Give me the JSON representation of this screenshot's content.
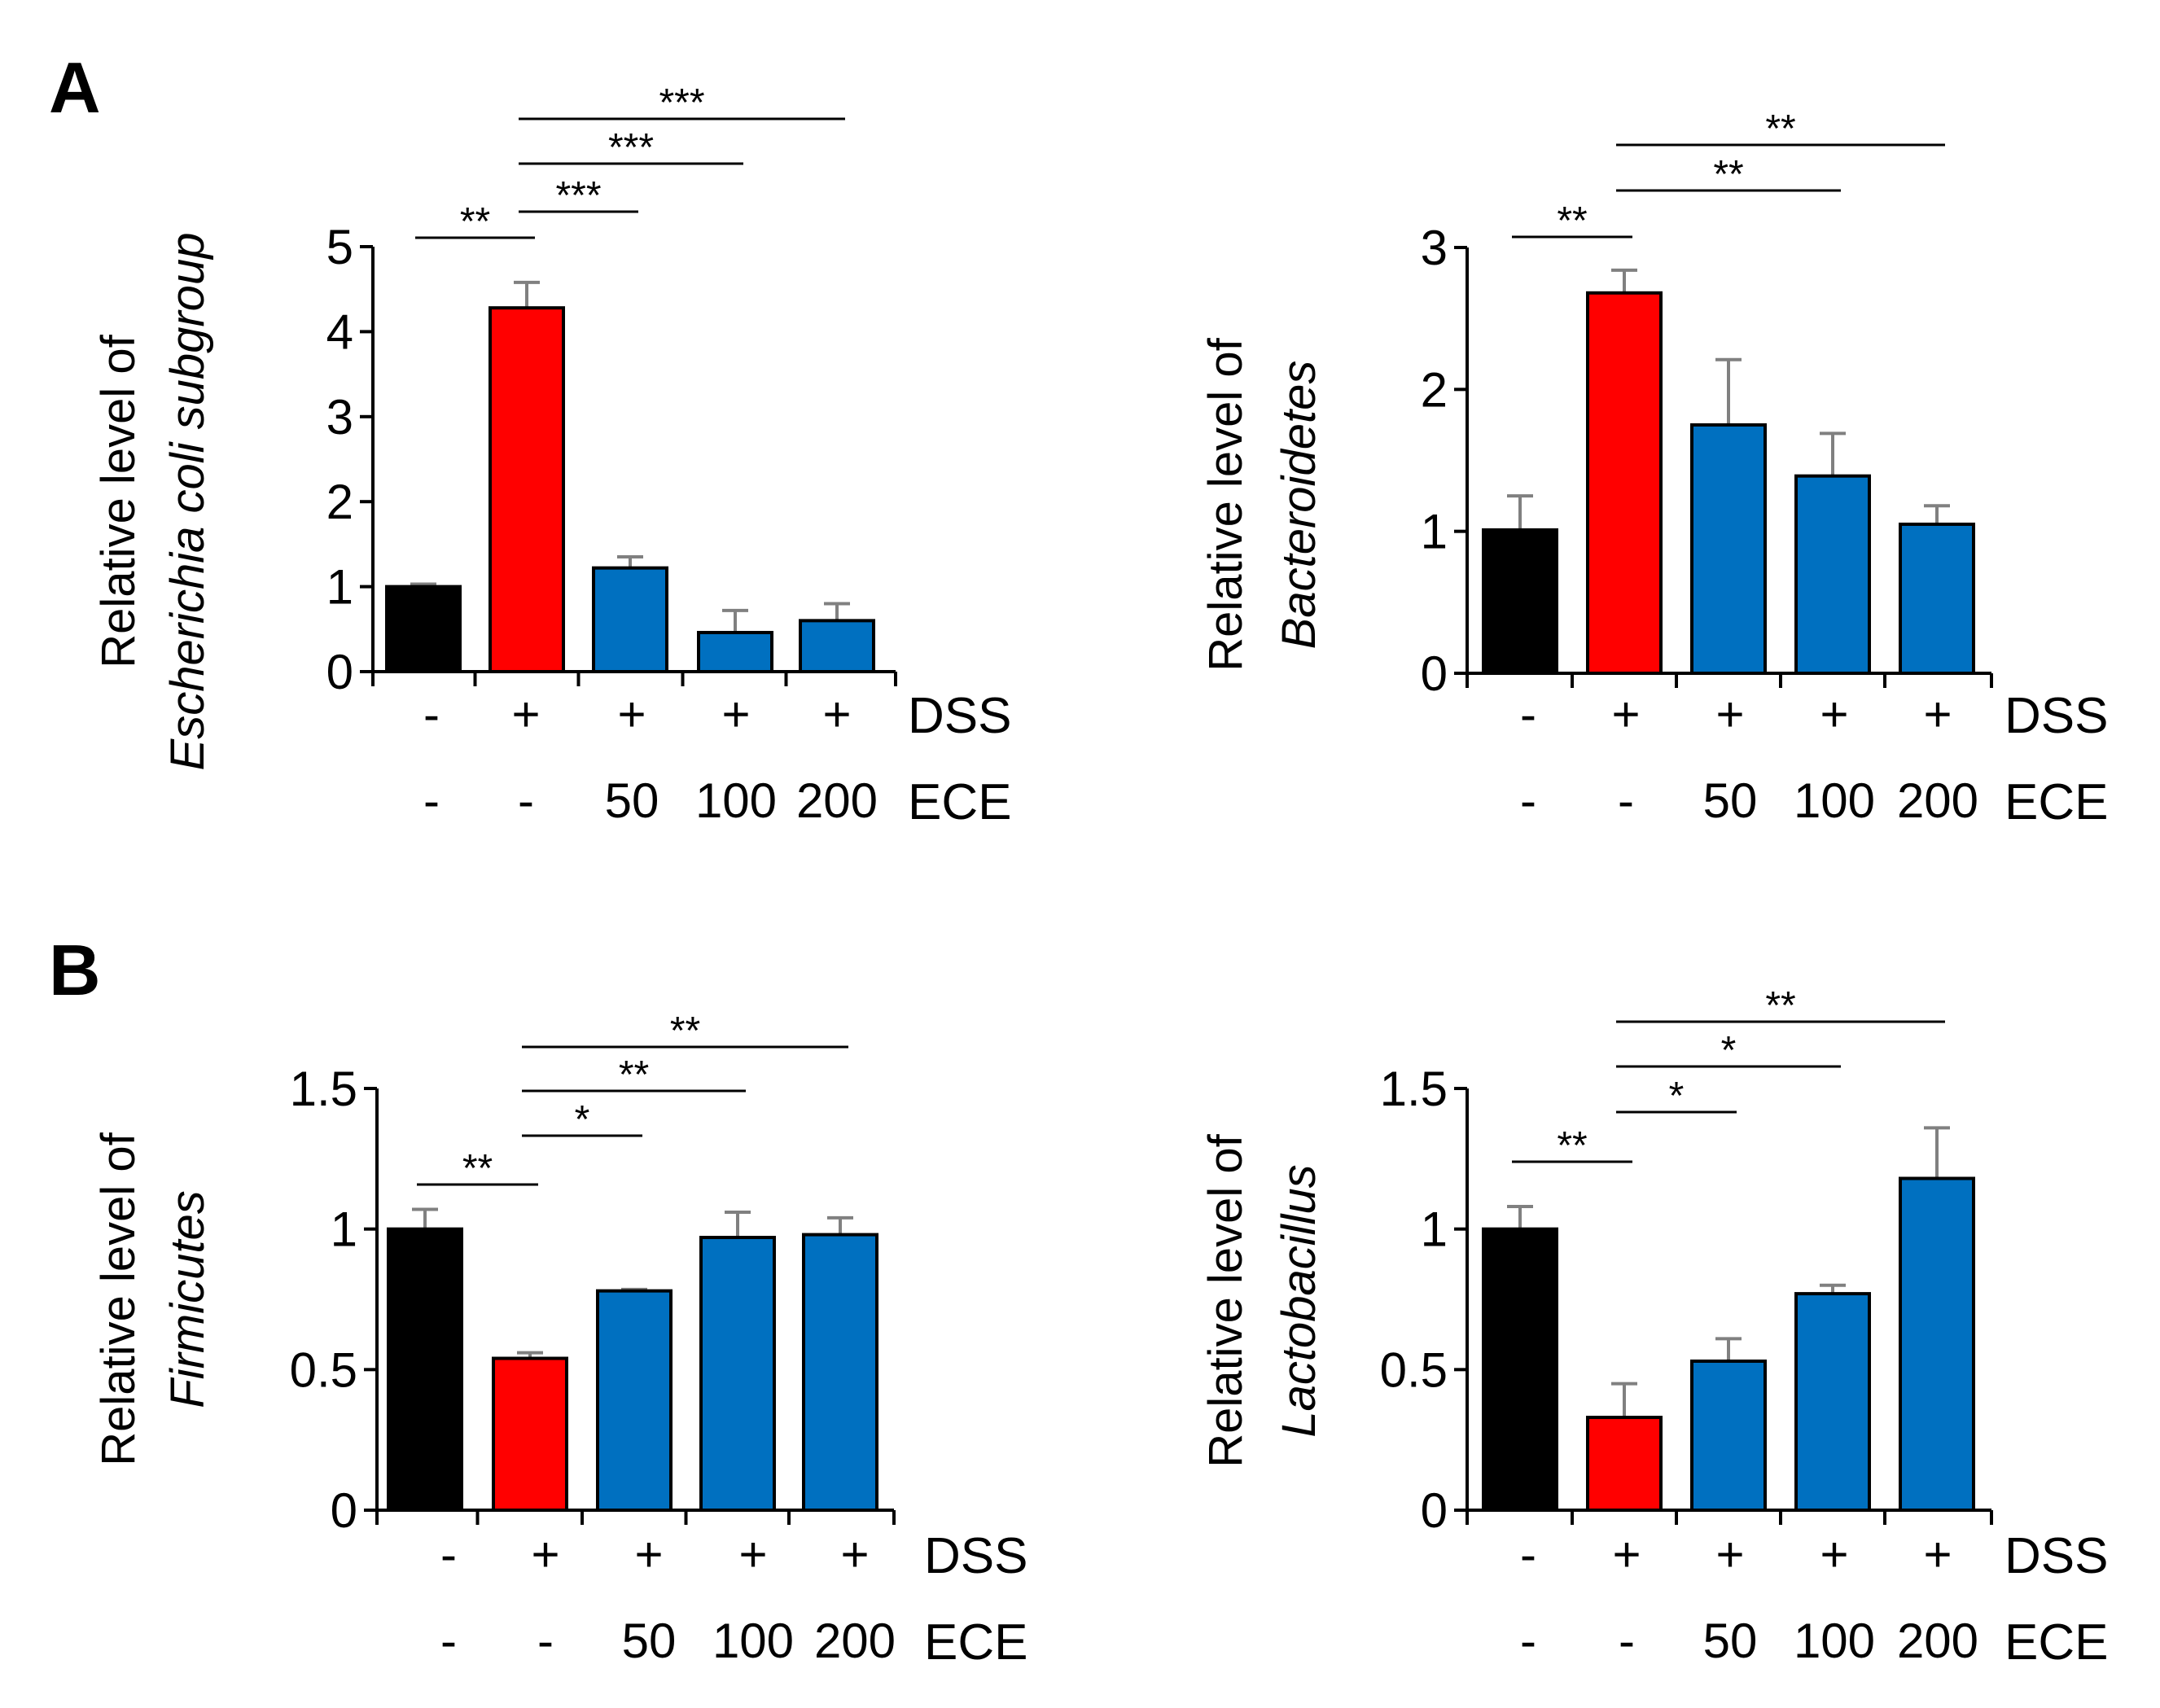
{
  "panels": [
    {
      "letter": "A"
    },
    {
      "letter": "B"
    }
  ],
  "conditions": {
    "rows": [
      "DSS",
      "ECE"
    ],
    "dss": [
      "-",
      "+",
      "+",
      "+",
      "+"
    ],
    "ece": [
      "-",
      "-",
      "50",
      "100",
      "200"
    ]
  },
  "colors": {
    "control": "#000000",
    "dss": "#ff0000",
    "ece": "#0070c0",
    "error": "#808080"
  },
  "chart_data": [
    {
      "type": "bar",
      "panel": "A",
      "ylabel_line1": "Relative level of",
      "ylabel_line2": "Escherichia coli subgroup",
      "ylim": [
        0,
        5
      ],
      "yticks": [
        "0",
        "1",
        "2",
        "3",
        "4",
        "5"
      ],
      "categories": [
        "-/-",
        "+/-",
        "+/50",
        "+/100",
        "+/200"
      ],
      "values": [
        1.0,
        4.28,
        1.22,
        0.46,
        0.6
      ],
      "errors": [
        0.03,
        0.3,
        0.13,
        0.26,
        0.2
      ],
      "significance": [
        {
          "from": 0,
          "to": 1,
          "label": "**"
        },
        {
          "from": 1,
          "to": 2,
          "label": "***"
        },
        {
          "from": 1,
          "to": 3,
          "label": "***"
        },
        {
          "from": 1,
          "to": 4,
          "label": "***"
        }
      ]
    },
    {
      "type": "bar",
      "panel": "A",
      "ylabel_line1": "Relative level of",
      "ylabel_line2": "Bacteroidetes",
      "ylim": [
        0,
        3
      ],
      "yticks": [
        "0",
        "1",
        "2",
        "3"
      ],
      "categories": [
        "-/-",
        "+/-",
        "+/50",
        "+/100",
        "+/200"
      ],
      "values": [
        1.01,
        2.68,
        1.75,
        1.39,
        1.05
      ],
      "errors": [
        0.24,
        0.16,
        0.46,
        0.3,
        0.13
      ],
      "significance": [
        {
          "from": 0,
          "to": 1,
          "label": "**"
        },
        {
          "from": 1,
          "to": 3,
          "label": "**"
        },
        {
          "from": 1,
          "to": 4,
          "label": "**"
        }
      ]
    },
    {
      "type": "bar",
      "panel": "B",
      "ylabel_line1": "Relative level of",
      "ylabel_line2": "Firmicutes",
      "ylim": [
        0,
        1.5
      ],
      "yticks": [
        "0",
        "0.5",
        "1",
        "1.5"
      ],
      "categories": [
        "-/-",
        "+/-",
        "+/50",
        "+/100",
        "+/200"
      ],
      "values": [
        1.0,
        0.54,
        0.78,
        0.97,
        0.98
      ],
      "errors": [
        0.07,
        0.02,
        0.005,
        0.09,
        0.06
      ],
      "significance": [
        {
          "from": 0,
          "to": 1,
          "label": "**"
        },
        {
          "from": 1,
          "to": 2,
          "label": "*"
        },
        {
          "from": 1,
          "to": 3,
          "label": "**"
        },
        {
          "from": 1,
          "to": 4,
          "label": "**"
        }
      ]
    },
    {
      "type": "bar",
      "panel": "B",
      "ylabel_line1": "Relative level of",
      "ylabel_line2": "Lactobacillus",
      "ylim": [
        0,
        1.5
      ],
      "yticks": [
        "0",
        "0.5",
        "1",
        "1.5"
      ],
      "categories": [
        "-/-",
        "+/-",
        "+/50",
        "+/100",
        "+/200"
      ],
      "values": [
        1.0,
        0.33,
        0.53,
        0.77,
        1.18
      ],
      "errors": [
        0.08,
        0.12,
        0.08,
        0.03,
        0.18
      ],
      "significance": [
        {
          "from": 0,
          "to": 1,
          "label": "**"
        },
        {
          "from": 1,
          "to": 2,
          "label": "*"
        },
        {
          "from": 1,
          "to": 3,
          "label": "*"
        },
        {
          "from": 1,
          "to": 4,
          "label": "**"
        }
      ]
    }
  ]
}
